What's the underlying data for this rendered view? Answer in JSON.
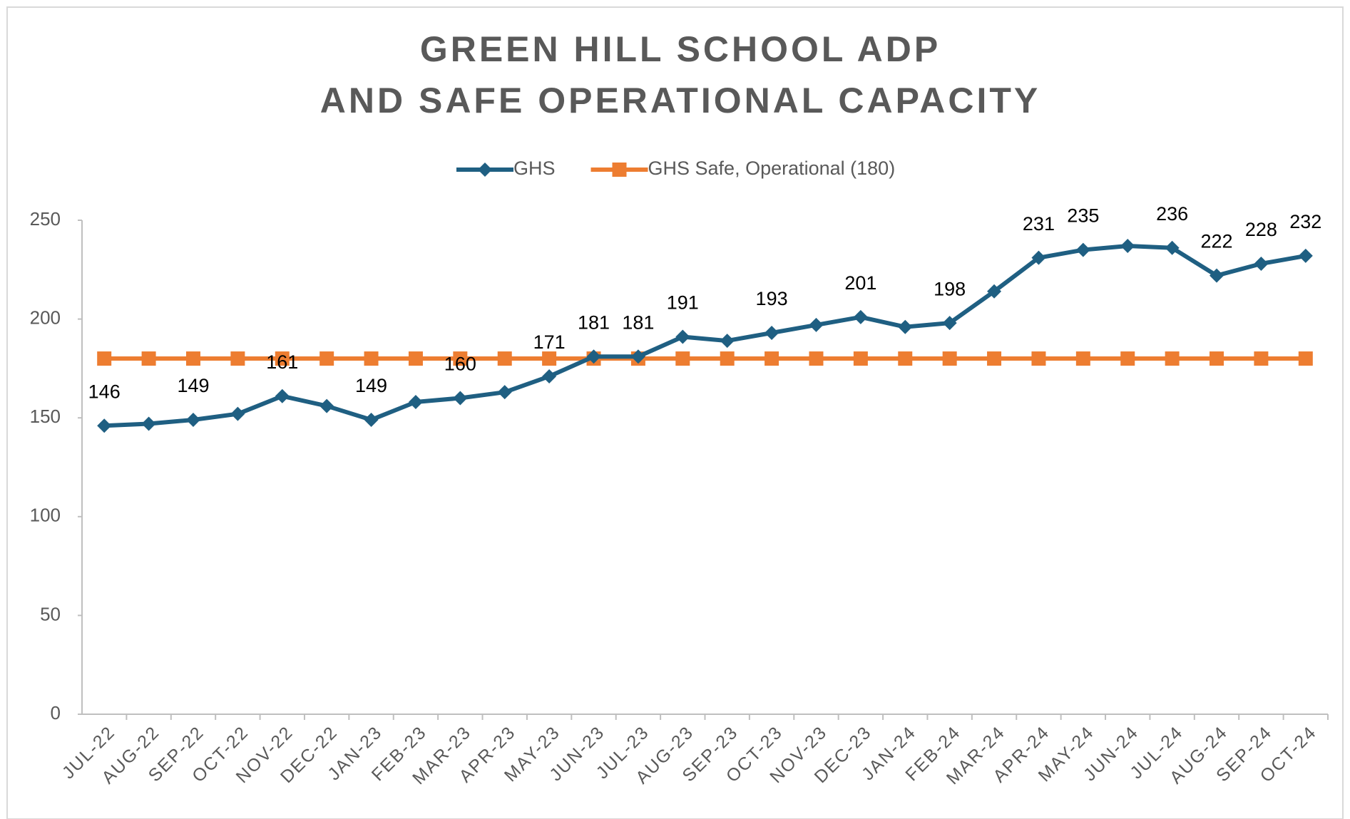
{
  "chart_data": {
    "type": "line",
    "title": [
      "GREEN HILL SCHOOL ADP",
      "AND SAFE OPERATIONAL CAPACITY"
    ],
    "categories": [
      "JUL-22",
      "AUG-22",
      "SEP-22",
      "OCT-22",
      "NOV-22",
      "DEC-22",
      "JAN-23",
      "FEB-23",
      "MAR-23",
      "APR-23",
      "MAY-23",
      "JUN-23",
      "JUL-23",
      "AUG-23",
      "SEP-23",
      "OCT-23",
      "NOV-23",
      "DEC-23",
      "JAN-24",
      "FEB-24",
      "MAR-24",
      "APR-24",
      "MAY-24",
      "JUN-24",
      "JUL-24",
      "AUG-24",
      "SEP-24",
      "OCT-24"
    ],
    "series": [
      {
        "name": "GHS",
        "color": "#1f5f82",
        "marker": "diamond",
        "values": [
          146,
          147,
          149,
          152,
          161,
          156,
          149,
          158,
          160,
          163,
          171,
          181,
          181,
          191,
          189,
          193,
          197,
          201,
          196,
          198,
          214,
          231,
          235,
          237,
          236,
          222,
          228,
          232
        ],
        "value_labels": [
          "146",
          null,
          "149",
          null,
          "161",
          null,
          "149",
          null,
          "160",
          null,
          "171",
          "181",
          "181",
          "191",
          null,
          "193",
          null,
          "201",
          null,
          "198",
          null,
          "231",
          "235",
          null,
          "236",
          "222",
          "228",
          "232"
        ]
      },
      {
        "name": "GHS Safe, Operational (180)",
        "color": "#ed7d31",
        "marker": "square",
        "values": [
          180,
          180,
          180,
          180,
          180,
          180,
          180,
          180,
          180,
          180,
          180,
          180,
          180,
          180,
          180,
          180,
          180,
          180,
          180,
          180,
          180,
          180,
          180,
          180,
          180,
          180,
          180,
          180
        ]
      }
    ],
    "ylim": [
      0,
      250
    ],
    "yticks": [
      0,
      50,
      100,
      150,
      200,
      250
    ],
    "grid": false,
    "legend": "top"
  }
}
